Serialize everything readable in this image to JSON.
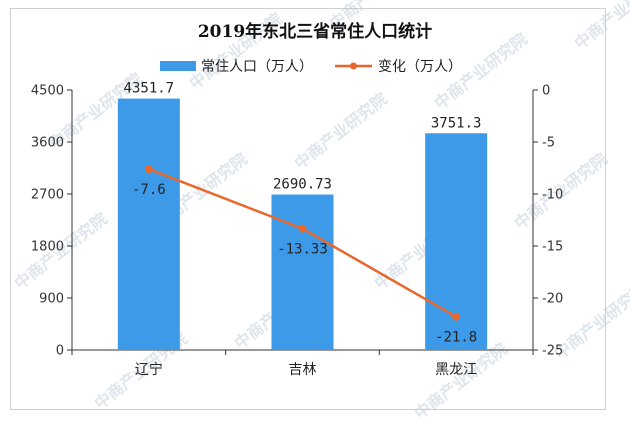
{
  "chart_data": {
    "type": "bar+line",
    "title": "2019年东北三省常住人口统计",
    "categories": [
      "辽宁",
      "吉林",
      "黑龙江"
    ],
    "series": [
      {
        "name": "常住人口（万人）",
        "type": "bar",
        "axis": "left",
        "color": "#3d9ae8",
        "values": [
          4351.7,
          2690.73,
          3751.3
        ],
        "labels": [
          "4351.7",
          "2690.73",
          "3751.3"
        ]
      },
      {
        "name": "变化（万人）",
        "type": "line",
        "axis": "right",
        "color": "#e8672a",
        "values": [
          -7.6,
          -13.33,
          -21.8
        ],
        "labels": [
          "-7.6",
          "-13.33",
          "-21.8"
        ]
      }
    ],
    "left_axis": {
      "min": 0,
      "max": 4500,
      "ticks": [
        "0",
        "900",
        "1800",
        "2700",
        "3600",
        "4500"
      ]
    },
    "right_axis": {
      "min": -25,
      "max": 0,
      "ticks": [
        "0",
        "-5",
        "-10",
        "-15",
        "-20",
        "-25"
      ]
    },
    "legend_position": "top",
    "grid": false
  },
  "watermark": "中商产业研究院"
}
